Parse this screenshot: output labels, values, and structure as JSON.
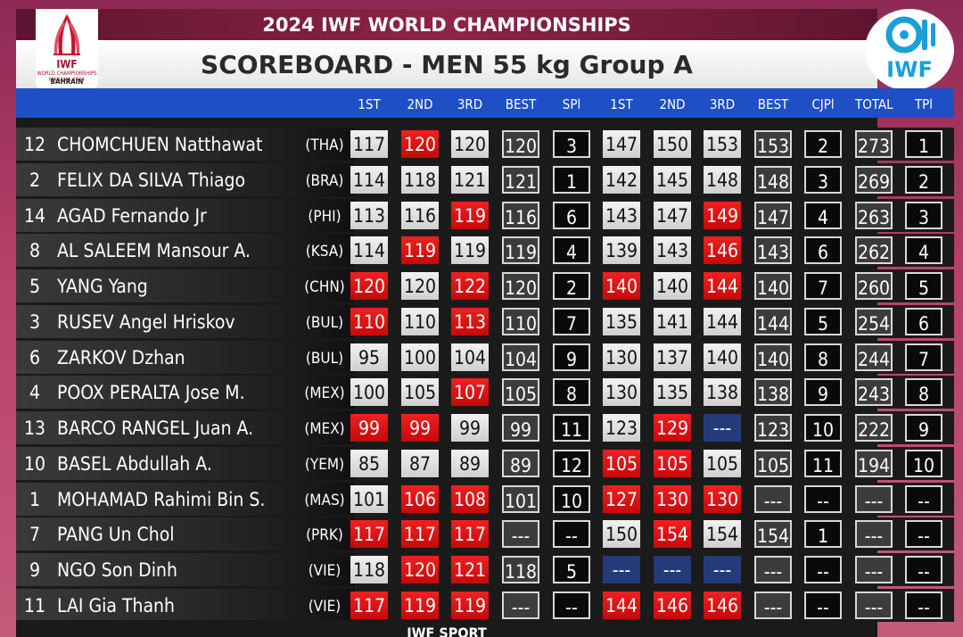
{
  "header": {
    "event_title": "2024 IWF WORLD CHAMPIONSHIPS",
    "session_title": "SCOREBOARD - MEN 55 kg Group A",
    "left_logo": {
      "mark": "IWF",
      "subtitle": "WORLD CHAMPIONSHIPS MANAMA 2024",
      "place": "BAHRAIN"
    },
    "right_logo": {
      "text": "IWF"
    }
  },
  "columns": [
    "1ST",
    "2ND",
    "3RD",
    "BEST",
    "SPl",
    "1ST",
    "2ND",
    "3RD",
    "BEST",
    "CJPl",
    "TOTAL",
    "TPl"
  ],
  "colors": {
    "fail": "#e01515",
    "good": "#e0e0e0",
    "no_attempt": "#243a7a",
    "header_bar": "#1e4fc4",
    "event_bar": "#7a1c3e"
  },
  "athletes": [
    {
      "lot": "12",
      "name": "CHOMCHUEN Natthawat",
      "nation": "(THA)",
      "snatch": [
        [
          "117",
          "g"
        ],
        [
          "120",
          "f"
        ],
        [
          "120",
          "g"
        ]
      ],
      "snatch_best": "120",
      "snatch_place": "3",
      "cj": [
        [
          "147",
          "g"
        ],
        [
          "150",
          "g"
        ],
        [
          "153",
          "g"
        ]
      ],
      "cj_best": "153",
      "cj_place": "2",
      "total": "273",
      "total_place": "1"
    },
    {
      "lot": "2",
      "name": "FELIX DA SILVA Thiago",
      "nation": "(BRA)",
      "snatch": [
        [
          "114",
          "g"
        ],
        [
          "118",
          "g"
        ],
        [
          "121",
          "g"
        ]
      ],
      "snatch_best": "121",
      "snatch_place": "1",
      "cj": [
        [
          "142",
          "g"
        ],
        [
          "145",
          "g"
        ],
        [
          "148",
          "g"
        ]
      ],
      "cj_best": "148",
      "cj_place": "3",
      "total": "269",
      "total_place": "2"
    },
    {
      "lot": "14",
      "name": "AGAD Fernando Jr",
      "nation": "(PHI)",
      "snatch": [
        [
          "113",
          "g"
        ],
        [
          "116",
          "g"
        ],
        [
          "119",
          "f"
        ]
      ],
      "snatch_best": "116",
      "snatch_place": "6",
      "cj": [
        [
          "143",
          "g"
        ],
        [
          "147",
          "g"
        ],
        [
          "149",
          "f"
        ]
      ],
      "cj_best": "147",
      "cj_place": "4",
      "total": "263",
      "total_place": "3"
    },
    {
      "lot": "8",
      "name": "AL SALEEM Mansour A.",
      "nation": "(KSA)",
      "snatch": [
        [
          "114",
          "g"
        ],
        [
          "119",
          "f"
        ],
        [
          "119",
          "g"
        ]
      ],
      "snatch_best": "119",
      "snatch_place": "4",
      "cj": [
        [
          "139",
          "g"
        ],
        [
          "143",
          "g"
        ],
        [
          "146",
          "f"
        ]
      ],
      "cj_best": "143",
      "cj_place": "6",
      "total": "262",
      "total_place": "4"
    },
    {
      "lot": "5",
      "name": "YANG Yang",
      "nation": "(CHN)",
      "snatch": [
        [
          "120",
          "f"
        ],
        [
          "120",
          "g"
        ],
        [
          "122",
          "f"
        ]
      ],
      "snatch_best": "120",
      "snatch_place": "2",
      "cj": [
        [
          "140",
          "f"
        ],
        [
          "140",
          "g"
        ],
        [
          "144",
          "f"
        ]
      ],
      "cj_best": "140",
      "cj_place": "7",
      "total": "260",
      "total_place": "5"
    },
    {
      "lot": "3",
      "name": "RUSEV Angel Hriskov",
      "nation": "(BUL)",
      "snatch": [
        [
          "110",
          "f"
        ],
        [
          "110",
          "g"
        ],
        [
          "113",
          "f"
        ]
      ],
      "snatch_best": "110",
      "snatch_place": "7",
      "cj": [
        [
          "135",
          "g"
        ],
        [
          "141",
          "g"
        ],
        [
          "144",
          "g"
        ]
      ],
      "cj_best": "144",
      "cj_place": "5",
      "total": "254",
      "total_place": "6"
    },
    {
      "lot": "6",
      "name": "ZARKOV Dzhan",
      "nation": "(BUL)",
      "snatch": [
        [
          "95",
          "g"
        ],
        [
          "100",
          "g"
        ],
        [
          "104",
          "g"
        ]
      ],
      "snatch_best": "104",
      "snatch_place": "9",
      "cj": [
        [
          "130",
          "g"
        ],
        [
          "137",
          "g"
        ],
        [
          "140",
          "g"
        ]
      ],
      "cj_best": "140",
      "cj_place": "8",
      "total": "244",
      "total_place": "7"
    },
    {
      "lot": "4",
      "name": "POOX PERALTA Jose M.",
      "nation": "(MEX)",
      "snatch": [
        [
          "100",
          "g"
        ],
        [
          "105",
          "g"
        ],
        [
          "107",
          "f"
        ]
      ],
      "snatch_best": "105",
      "snatch_place": "8",
      "cj": [
        [
          "130",
          "g"
        ],
        [
          "135",
          "g"
        ],
        [
          "138",
          "g"
        ]
      ],
      "cj_best": "138",
      "cj_place": "9",
      "total": "243",
      "total_place": "8"
    },
    {
      "lot": "13",
      "name": "BARCO RANGEL Juan A.",
      "nation": "(MEX)",
      "snatch": [
        [
          "99",
          "f"
        ],
        [
          "99",
          "f"
        ],
        [
          "99",
          "g"
        ]
      ],
      "snatch_best": "99",
      "snatch_place": "11",
      "cj": [
        [
          "123",
          "g"
        ],
        [
          "129",
          "f"
        ],
        [
          "---",
          "n"
        ]
      ],
      "cj_best": "123",
      "cj_place": "10",
      "total": "222",
      "total_place": "9"
    },
    {
      "lot": "10",
      "name": "BASEL Abdullah A.",
      "nation": "(YEM)",
      "snatch": [
        [
          "85",
          "g"
        ],
        [
          "87",
          "g"
        ],
        [
          "89",
          "g"
        ]
      ],
      "snatch_best": "89",
      "snatch_place": "12",
      "cj": [
        [
          "105",
          "f"
        ],
        [
          "105",
          "f"
        ],
        [
          "105",
          "g"
        ]
      ],
      "cj_best": "105",
      "cj_place": "11",
      "total": "194",
      "total_place": "10"
    },
    {
      "lot": "1",
      "name": "MOHAMAD Rahimi Bin S.",
      "nation": "(MAS)",
      "snatch": [
        [
          "101",
          "g"
        ],
        [
          "106",
          "f"
        ],
        [
          "108",
          "f"
        ]
      ],
      "snatch_best": "101",
      "snatch_place": "10",
      "cj": [
        [
          "127",
          "f"
        ],
        [
          "130",
          "f"
        ],
        [
          "130",
          "f"
        ]
      ],
      "cj_best": "---",
      "cj_place": "--",
      "total": "---",
      "total_place": "--"
    },
    {
      "lot": "7",
      "name": "PANG Un Chol",
      "nation": "(PRK)",
      "snatch": [
        [
          "117",
          "f"
        ],
        [
          "117",
          "f"
        ],
        [
          "117",
          "f"
        ]
      ],
      "snatch_best": "---",
      "snatch_place": "--",
      "cj": [
        [
          "150",
          "g"
        ],
        [
          "154",
          "f"
        ],
        [
          "154",
          "g"
        ]
      ],
      "cj_best": "154",
      "cj_place": "1",
      "total": "---",
      "total_place": "--"
    },
    {
      "lot": "9",
      "name": "NGO Son Dinh",
      "nation": "(VIE)",
      "snatch": [
        [
          "118",
          "g"
        ],
        [
          "120",
          "f"
        ],
        [
          "121",
          "f"
        ]
      ],
      "snatch_best": "118",
      "snatch_place": "5",
      "cj": [
        [
          "---",
          "n"
        ],
        [
          "---",
          "n"
        ],
        [
          "---",
          "n"
        ]
      ],
      "cj_best": "---",
      "cj_place": "--",
      "total": "---",
      "total_place": "--"
    },
    {
      "lot": "11",
      "name": "LAI Gia Thanh",
      "nation": "(VIE)",
      "snatch": [
        [
          "117",
          "f"
        ],
        [
          "119",
          "f"
        ],
        [
          "119",
          "f"
        ]
      ],
      "snatch_best": "---",
      "snatch_place": "--",
      "cj": [
        [
          "144",
          "f"
        ],
        [
          "146",
          "f"
        ],
        [
          "146",
          "f"
        ]
      ],
      "cj_best": "---",
      "cj_place": "--",
      "total": "---",
      "total_place": "--"
    }
  ],
  "footer": {
    "text": "IWF SPORT"
  }
}
